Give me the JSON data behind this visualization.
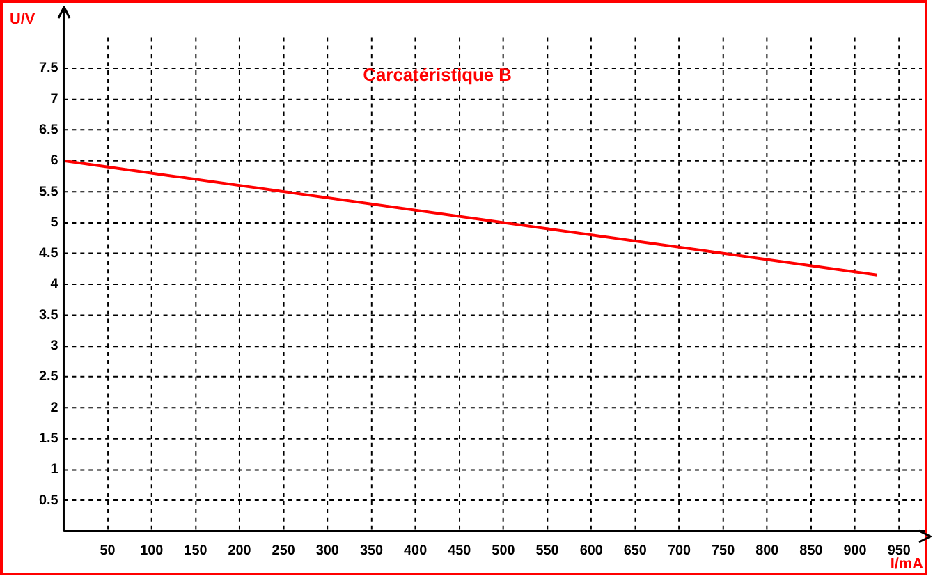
{
  "chart_data": {
    "type": "line",
    "title": "Carcatéristique B",
    "xlabel": "I/mA",
    "ylabel": "U/V",
    "x": [
      0,
      925
    ],
    "series": [
      {
        "color": "#ff0000",
        "values": [
          6,
          4.15
        ]
      }
    ],
    "xlim": [
      0,
      976
    ],
    "ylim": [
      0,
      8
    ],
    "xticks": [
      50,
      100,
      150,
      200,
      250,
      300,
      350,
      400,
      450,
      500,
      550,
      600,
      650,
      700,
      750,
      800,
      850,
      900,
      950
    ],
    "yticks": [
      0.5,
      1,
      1.5,
      2,
      2.5,
      3,
      3.5,
      4,
      4.5,
      5,
      5.5,
      6,
      6.5,
      7,
      7.5
    ],
    "grid": true,
    "legend": false,
    "marker": "none",
    "line_style": "solid"
  }
}
